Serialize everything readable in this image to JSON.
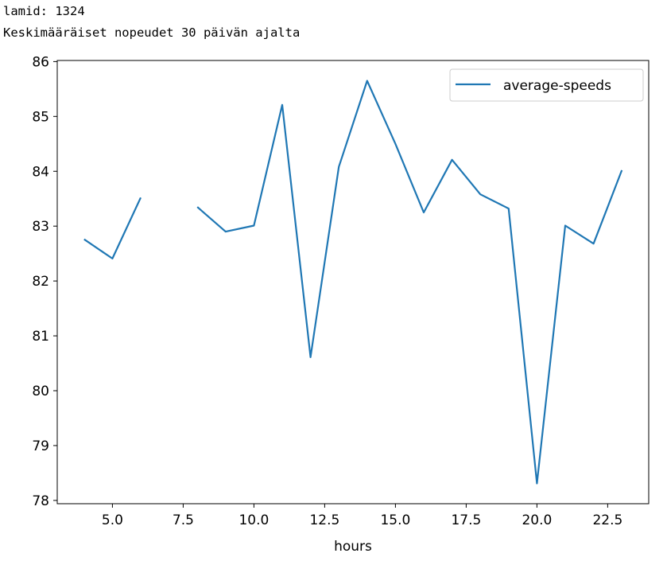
{
  "output": {
    "line1": "lamid: 1324",
    "line2": "Keskimääräiset nopeudet 30 päivän ajalta"
  },
  "chart_data": {
    "type": "line",
    "xlabel": "hours",
    "ylabel": "",
    "xlim": [
      3.05,
      23.95
    ],
    "ylim": [
      77.94,
      86.02
    ],
    "xticks": [
      5.0,
      7.5,
      10.0,
      12.5,
      15.0,
      17.5,
      20.0,
      22.5
    ],
    "xtick_labels": [
      "5.0",
      "7.5",
      "10.0",
      "12.5",
      "15.0",
      "17.5",
      "20.0",
      "22.5"
    ],
    "yticks": [
      78,
      79,
      80,
      81,
      82,
      83,
      84,
      85,
      86
    ],
    "ytick_labels": [
      "78",
      "79",
      "80",
      "81",
      "82",
      "83",
      "84",
      "85",
      "86"
    ],
    "grid": false,
    "legend_position": "upper right",
    "series": [
      {
        "name": "average-speeds",
        "color": "#1f77b4",
        "x": [
          4,
          5,
          6,
          7,
          8,
          9,
          10,
          11,
          12,
          13,
          14,
          15,
          16,
          17,
          18,
          19,
          20,
          21,
          22,
          23
        ],
        "y": [
          82.76,
          82.41,
          83.52,
          null,
          83.35,
          82.9,
          83.01,
          85.21,
          80.61,
          84.08,
          85.65,
          84.5,
          83.25,
          84.21,
          83.58,
          83.32,
          78.31,
          83.01,
          82.68,
          84.02
        ]
      }
    ]
  }
}
